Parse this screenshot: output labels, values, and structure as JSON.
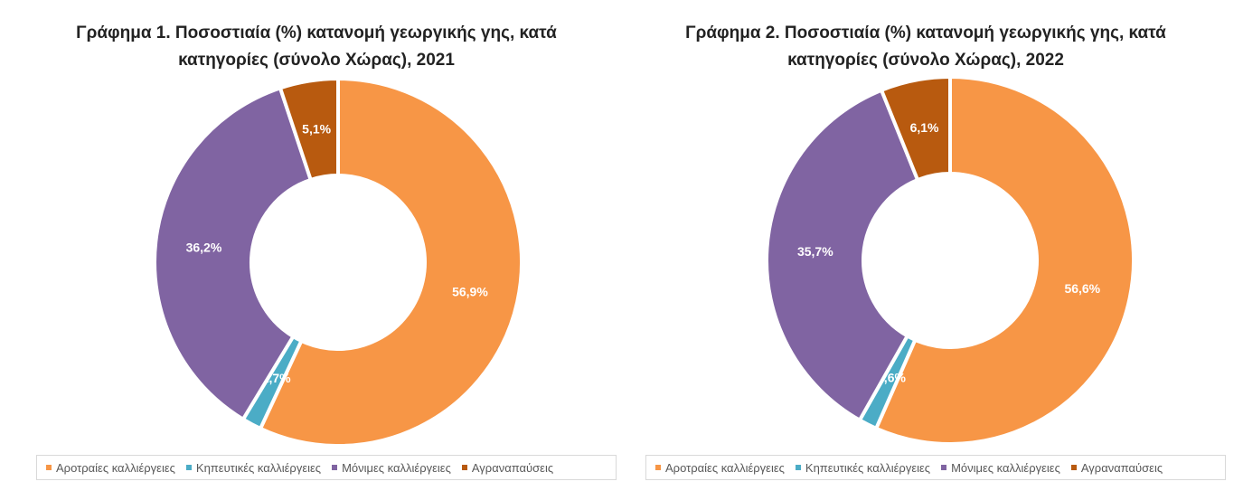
{
  "chart_data": [
    {
      "type": "donut",
      "title_lines": [
        "Γράφημα 1. Ποσοστιαία (%) κατανομή γεωργικής γης, κατά",
        "κατηγορίες (σύνολο Χώρας), 2021"
      ],
      "categories": [
        "Αροτραίες καλλιέργειες",
        "Κηπευτικές καλλιέργειες",
        "Μόνιμες καλλιέργειες",
        "Αγραναπαύσεις"
      ],
      "values": [
        56.9,
        1.7,
        36.2,
        5.1
      ],
      "labels": [
        "56,9%",
        "1,7%",
        "36,2%",
        "5,1%"
      ],
      "colors": [
        "#f79646",
        "#4bacc6",
        "#8064a2",
        "#b85a0f"
      ],
      "legend": "bottom"
    },
    {
      "type": "donut",
      "title_lines": [
        "Γράφημα 2. Ποσοστιαία (%) κατανομή γεωργικής γης, κατά",
        "κατηγορίες (σύνολο Χώρας), 2022"
      ],
      "categories": [
        "Αροτραίες καλλιέργειες",
        "Κηπευτικές καλλιέργειες",
        "Μόνιμες καλλιέργειες",
        "Αγραναπαύσεις"
      ],
      "values": [
        56.6,
        1.6,
        35.7,
        6.1
      ],
      "labels": [
        "56,6%",
        "1,6%",
        "35,7%",
        "6,1%"
      ],
      "colors": [
        "#f79646",
        "#4bacc6",
        "#8064a2",
        "#b85a0f"
      ],
      "legend": "bottom"
    }
  ]
}
